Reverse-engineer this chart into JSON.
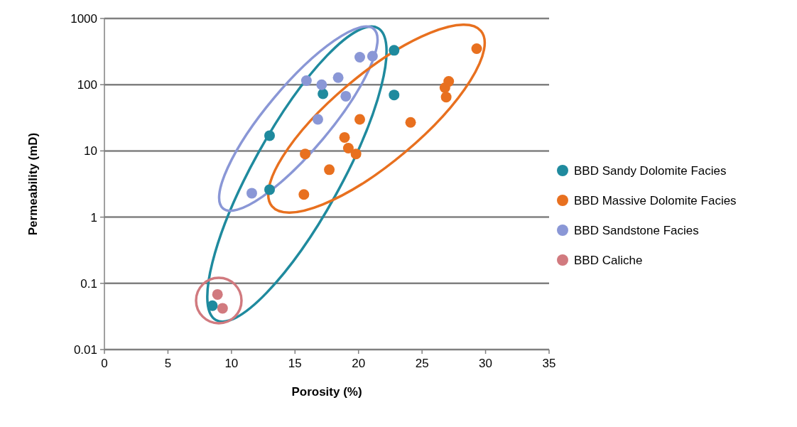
{
  "chart_data": {
    "type": "scatter",
    "xlabel": "Porosity (%)",
    "ylabel": "Permeability (mD)",
    "xlim": [
      0,
      35
    ],
    "xticks": [
      0,
      5,
      10,
      15,
      20,
      25,
      30,
      35
    ],
    "ylim": [
      0.01,
      1000
    ],
    "yticks": [
      0.01,
      0.1,
      1,
      10,
      100,
      1000
    ],
    "log": "y",
    "grid": "y",
    "legend": "right",
    "marker": "circle",
    "series": [
      {
        "name": "BBD Sandy Dolomite Facies",
        "color": "#1f8a9e",
        "x": [
          13,
          13,
          17.2,
          22.8,
          22.8,
          8.5
        ],
        "values": [
          17,
          2.6,
          73,
          70,
          330,
          0.046
        ]
      },
      {
        "name": "BBD Massive Dolomite Facies",
        "color": "#e8701f",
        "x": [
          15.8,
          15.7,
          17.7,
          18.9,
          19.2,
          19.8,
          20.1,
          24.1,
          26.8,
          27.1,
          26.9,
          29.3
        ],
        "values": [
          9,
          2.2,
          5.2,
          16,
          11,
          9,
          30,
          27,
          90,
          112,
          65,
          350
        ]
      },
      {
        "name": "BBD Sandstone Facies",
        "color": "#8a97d6",
        "x": [
          11.6,
          15.9,
          17.1,
          16.8,
          18.4,
          19,
          20.1,
          21.1
        ],
        "values": [
          2.3,
          115,
          100,
          30,
          128,
          67,
          260,
          270
        ]
      },
      {
        "name": "BBD Caliche",
        "color": "#d17a7f",
        "x": [
          8.9,
          9.3
        ],
        "values": [
          0.068,
          0.042
        ]
      }
    ]
  }
}
